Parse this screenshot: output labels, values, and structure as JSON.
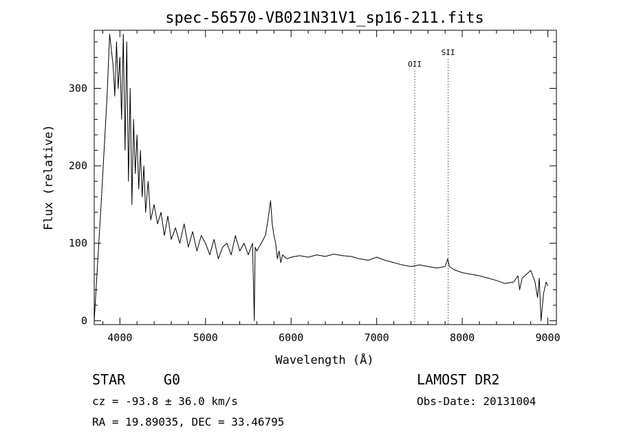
{
  "chart_data": {
    "type": "line",
    "title": "spec-56570-VB021N31V1_sp16-211.fits",
    "xlabel": "Wavelength (Å)",
    "ylabel": "Flux (relative)",
    "xlim": [
      3700,
      9100
    ],
    "ylim": [
      -5,
      375
    ],
    "xticks": [
      4000,
      5000,
      6000,
      7000,
      8000,
      9000
    ],
    "yticks": [
      0,
      100,
      200,
      300
    ],
    "grid": false,
    "series": [
      {
        "x": [
          3700,
          3780,
          3850,
          3880,
          3900,
          3920,
          3940,
          3960,
          3980,
          4000,
          4020,
          4040,
          4060,
          4080,
          4100,
          4120,
          4140,
          4160,
          4180,
          4200,
          4220,
          4240,
          4260,
          4280,
          4300,
          4330,
          4360,
          4400,
          4440,
          4480,
          4520,
          4560,
          4600,
          4650,
          4700,
          4750,
          4800,
          4850,
          4900,
          4950,
          5000,
          5050,
          5100,
          5150,
          5200,
          5250,
          5300,
          5350,
          5400,
          5450,
          5500,
          5550,
          5570,
          5580,
          5600,
          5650,
          5700,
          5730,
          5760,
          5780,
          5800,
          5820,
          5840,
          5860,
          5880,
          5900,
          5950,
          6000,
          6100,
          6200,
          6300,
          6400,
          6500,
          6600,
          6700,
          6800,
          6900,
          7000,
          7100,
          7200,
          7300,
          7400,
          7500,
          7600,
          7700,
          7800,
          7830,
          7850,
          7900,
          8000,
          8100,
          8200,
          8300,
          8400,
          8500,
          8600,
          8650,
          8670,
          8700,
          8750,
          8800,
          8850,
          8880,
          8900,
          8920,
          8950,
          8980,
          9000
        ],
        "y": [
          0,
          150,
          290,
          370,
          350,
          330,
          290,
          360,
          300,
          340,
          260,
          370,
          220,
          360,
          180,
          300,
          150,
          260,
          190,
          240,
          170,
          220,
          160,
          200,
          140,
          180,
          130,
          150,
          125,
          140,
          110,
          135,
          105,
          120,
          100,
          125,
          95,
          115,
          90,
          110,
          100,
          85,
          105,
          80,
          95,
          100,
          85,
          110,
          90,
          100,
          85,
          100,
          0,
          95,
          90,
          100,
          110,
          130,
          155,
          125,
          110,
          100,
          80,
          90,
          75,
          85,
          80,
          82,
          84,
          82,
          85,
          83,
          86,
          84,
          83,
          80,
          78,
          82,
          78,
          75,
          72,
          70,
          72,
          70,
          68,
          70,
          80,
          70,
          66,
          62,
          60,
          58,
          55,
          52,
          48,
          50,
          58,
          40,
          55,
          60,
          65,
          50,
          30,
          55,
          0,
          35,
          50,
          45
        ]
      }
    ],
    "annotations": [
      {
        "text": "OII",
        "x": 7445
      },
      {
        "text": "SII",
        "x": 7835
      }
    ]
  },
  "footer": {
    "object_class": "STAR",
    "subclass": "G0",
    "survey": "LAMOST DR2",
    "redshift_text": "cz = -93.8 ± 36.0 km/s",
    "obs_date": "Obs-Date: 20131004",
    "coords": "RA =  19.89035, DEC =  33.46795"
  }
}
